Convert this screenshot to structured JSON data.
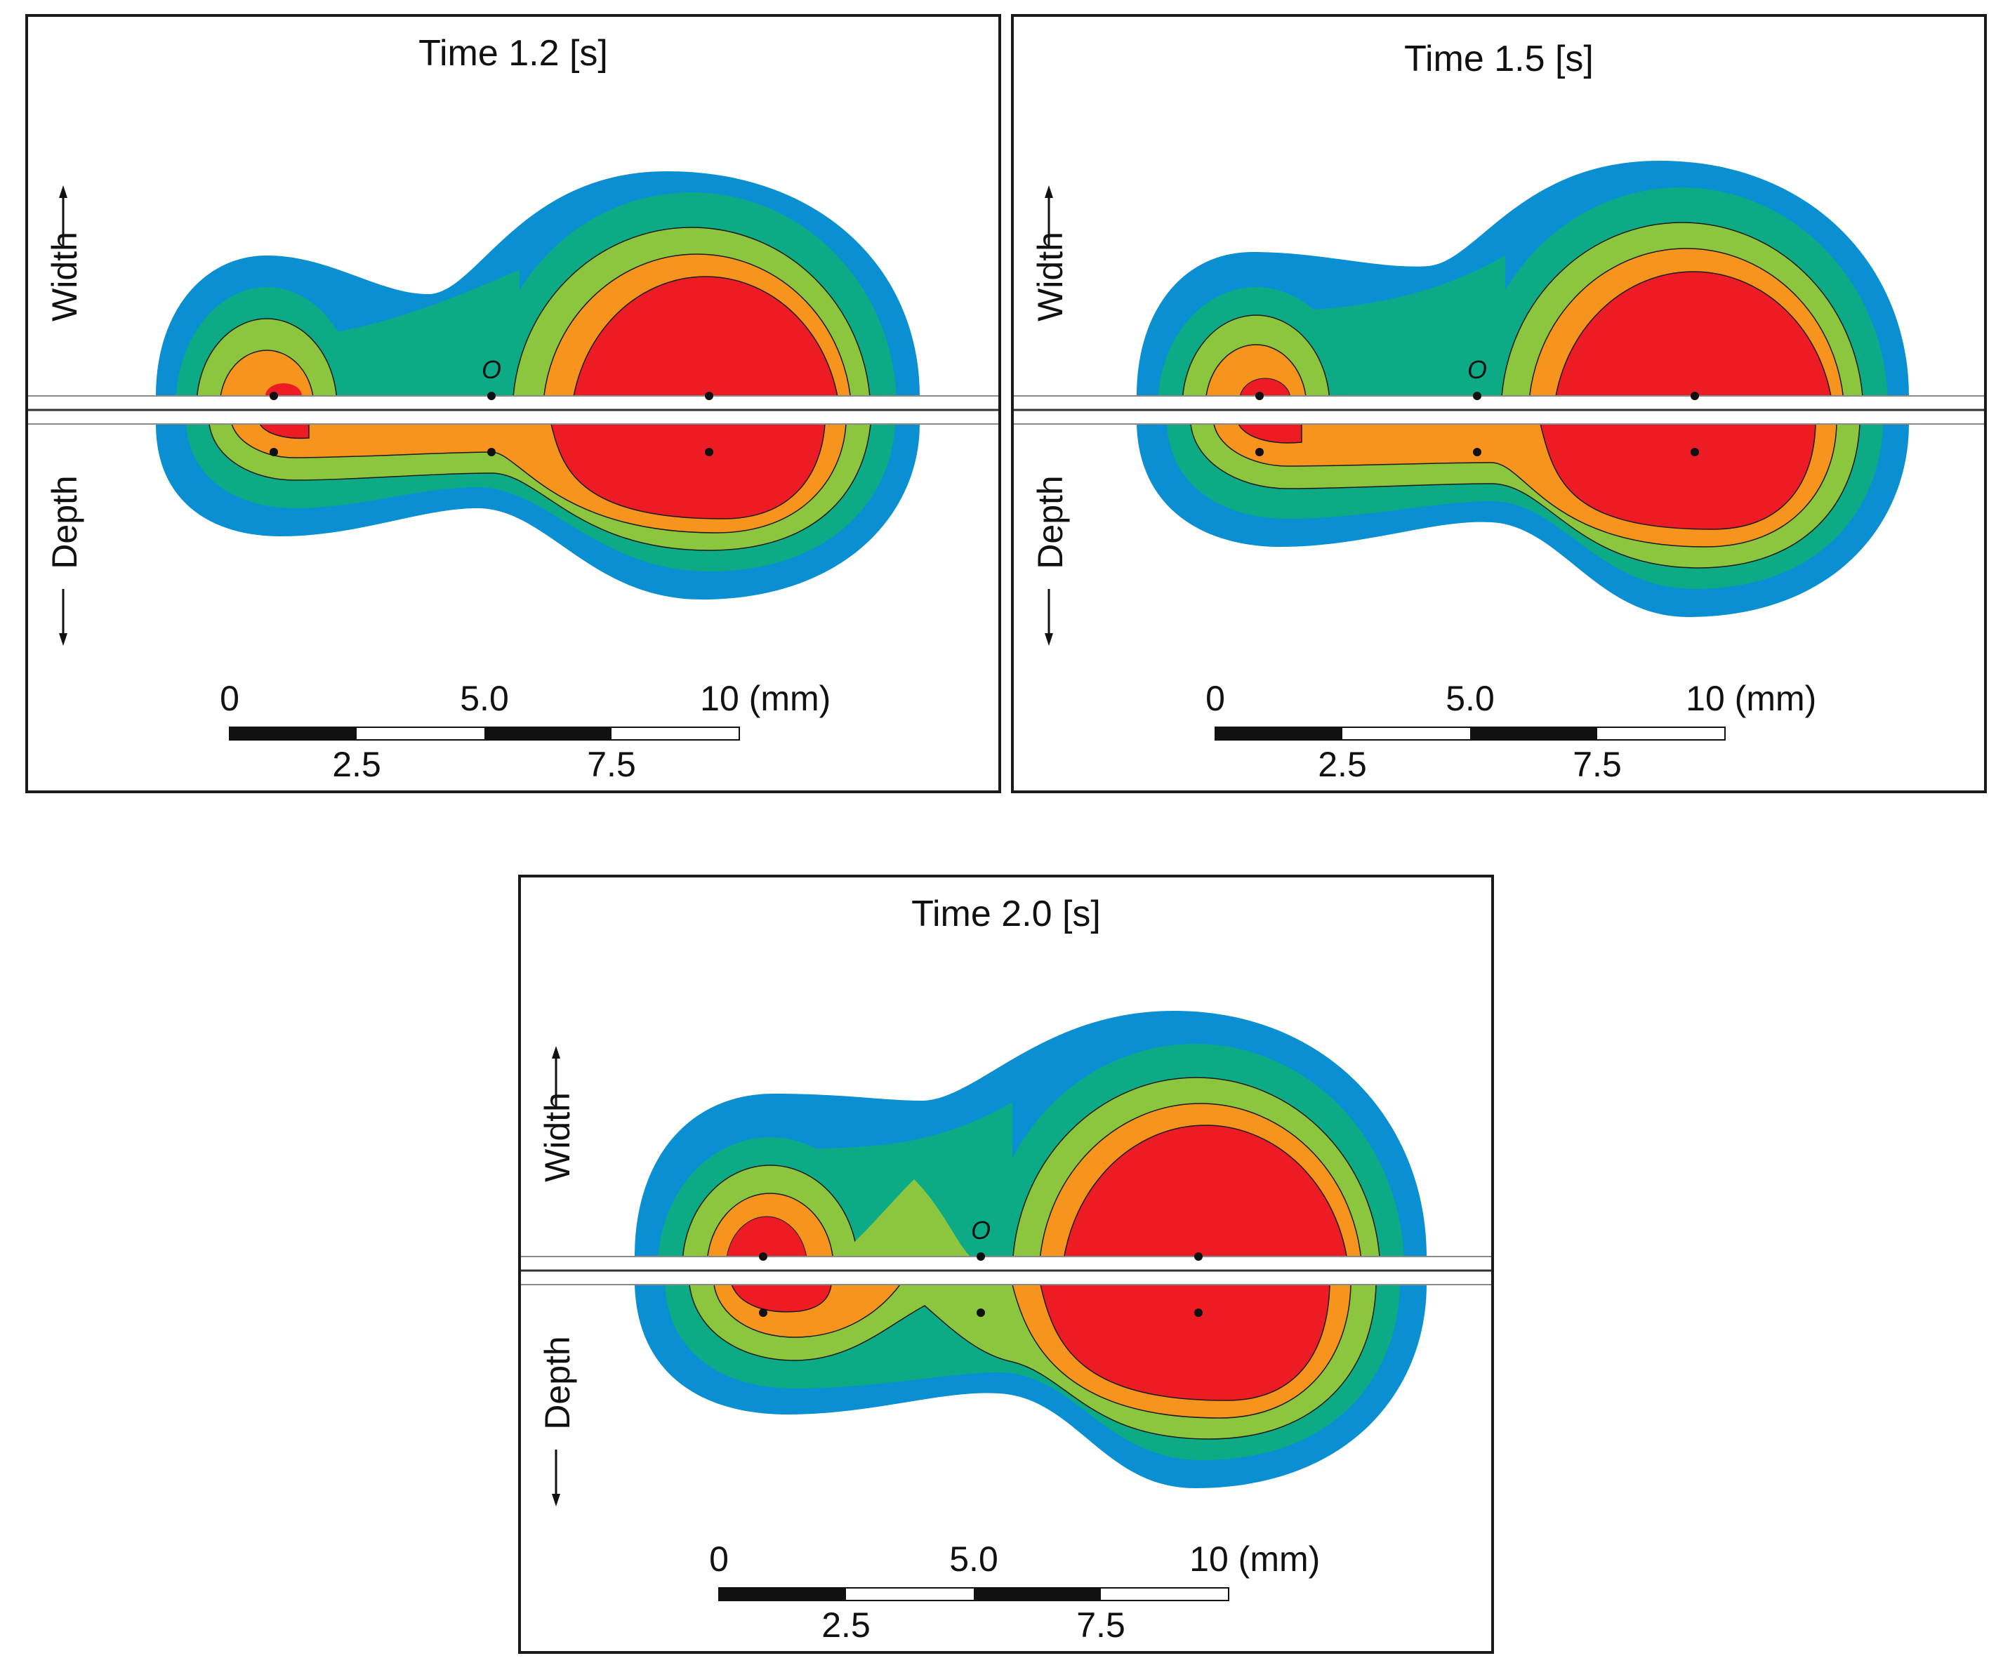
{
  "figure": {
    "colors": {
      "band1": "#0a8fd2",
      "band2": "#0cab86",
      "band3": "#8cc63e",
      "band4": "#f7941d",
      "core": "#ed1c24",
      "outline": "#1a1a1a",
      "pipe": "#ffffff"
    },
    "panels": [
      {
        "id": "t12",
        "title": "Time 1.2 [s]",
        "origin_label": "O",
        "axis_width": "Width",
        "axis_depth": "Depth",
        "scale_top_labels": [
          "0",
          "5.0",
          "10 (mm)"
        ],
        "scale_bottom_labels": [
          "2.5",
          "7.5"
        ]
      },
      {
        "id": "t15",
        "title": "Time 1.5 [s]",
        "origin_label": "O",
        "axis_width": "Width",
        "axis_depth": "Depth",
        "scale_top_labels": [
          "0",
          "5.0",
          "10 (mm)"
        ],
        "scale_bottom_labels": [
          "2.5",
          "7.5"
        ]
      },
      {
        "id": "t20",
        "title": "Time 2.0 [s]",
        "origin_label": "O",
        "axis_width": "Width",
        "axis_depth": "Depth",
        "scale_top_labels": [
          "0",
          "5.0",
          "10 (mm)"
        ],
        "scale_bottom_labels": [
          "2.5",
          "7.5"
        ]
      }
    ]
  }
}
